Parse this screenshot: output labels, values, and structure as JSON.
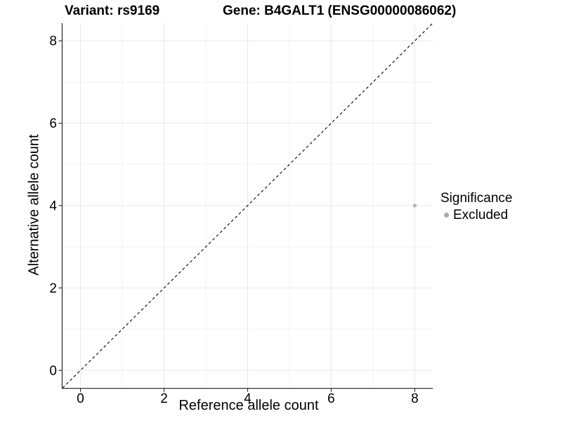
{
  "chart_data": {
    "type": "scatter",
    "title_left": "Variant: rs9169",
    "title_right": "Gene: B4GALT1 (ENSG00000086062)",
    "xlabel": "Reference allele count",
    "ylabel": "Alternative allele count",
    "x_range": [
      -0.43,
      8.43
    ],
    "y_range": [
      -0.43,
      8.43
    ],
    "x_ticks": [
      0,
      2,
      4,
      6,
      8
    ],
    "y_ticks": [
      0,
      2,
      4,
      6,
      8
    ],
    "minor_x": [
      1,
      3,
      5,
      7
    ],
    "minor_y": [
      1,
      3,
      5,
      7
    ],
    "grid": true,
    "identity_line": {
      "style": "dashed",
      "color": "#000000",
      "from": [
        -0.43,
        -0.43
      ],
      "to": [
        8.43,
        8.43
      ]
    },
    "series": [
      {
        "name": "Excluded",
        "color": "#b5b5b5",
        "points": [
          {
            "x": 8,
            "y": 4
          }
        ]
      }
    ],
    "legend": {
      "title": "Significance",
      "position": "right",
      "entries": [
        {
          "label": "Excluded",
          "color": "#a9a9a9"
        }
      ]
    },
    "colors": {
      "grid_major": "#e8e8e8",
      "grid_minor": "#f3f3f3",
      "axis_line": "#333333",
      "tick_mark": "#333333",
      "text": "#000000"
    }
  }
}
